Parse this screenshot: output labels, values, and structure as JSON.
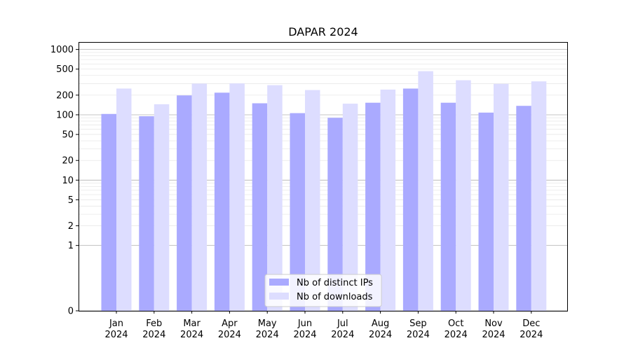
{
  "chart_data": {
    "type": "bar",
    "title": "DAPAR 2024",
    "xlabel": "",
    "ylabel": "",
    "yscale": "symlog",
    "ylim": [
      0,
      1300
    ],
    "ytick_values": [
      0,
      1,
      2,
      5,
      10,
      20,
      50,
      100,
      200,
      500,
      1000
    ],
    "ytick_labels": [
      "0",
      "1",
      "2",
      "5",
      "10",
      "20",
      "50",
      "100",
      "200",
      "500",
      "1000"
    ],
    "categories": [
      [
        "Jan",
        "2024"
      ],
      [
        "Feb",
        "2024"
      ],
      [
        "Mar",
        "2024"
      ],
      [
        "Apr",
        "2024"
      ],
      [
        "May",
        "2024"
      ],
      [
        "Jun",
        "2024"
      ],
      [
        "Jul",
        "2024"
      ],
      [
        "Aug",
        "2024"
      ],
      [
        "Sep",
        "2024"
      ],
      [
        "Oct",
        "2024"
      ],
      [
        "Nov",
        "2024"
      ],
      [
        "Dec",
        "2024"
      ]
    ],
    "series": [
      {
        "name": "Nb of distinct IPs",
        "color": "#aaaaff",
        "values": [
          103,
          95,
          198,
          218,
          150,
          106,
          90,
          153,
          252,
          153,
          108,
          137
        ]
      },
      {
        "name": "Nb of downloads",
        "color": "#ddddff",
        "values": [
          252,
          145,
          300,
          302,
          284,
          239,
          148,
          243,
          465,
          338,
          297,
          325
        ]
      }
    ],
    "grid": true,
    "legend_position": "bottom-center"
  }
}
